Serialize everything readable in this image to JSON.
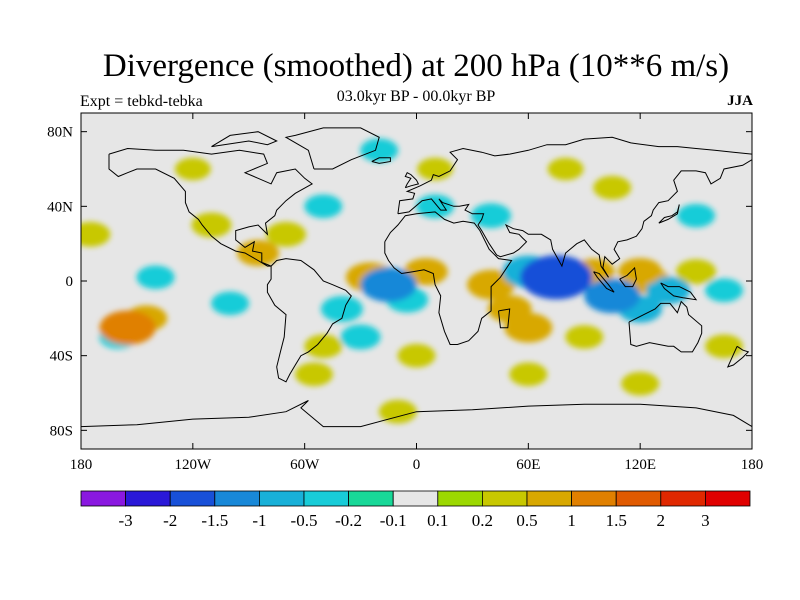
{
  "title": "Divergence (smoothed) at 200 hPa (10**6 m/s)",
  "subtitle": "03.0kyr BP - 00.0kyr BP",
  "left_label": "Expt = tebkd-tebka",
  "right_label": "JJA",
  "map": {
    "lon_range": [
      -180,
      180
    ],
    "lat_range": [
      -90,
      90
    ],
    "background_color": "#e6e6e6",
    "coastline_color": "#000000",
    "lat_ticks": [
      {
        "value": 80,
        "label": "80N"
      },
      {
        "value": 40,
        "label": "40N"
      },
      {
        "value": 0,
        "label": "0"
      },
      {
        "value": -40,
        "label": "40S"
      },
      {
        "value": -80,
        "label": "80S"
      }
    ],
    "lon_ticks": [
      {
        "value": -180,
        "label": "180"
      },
      {
        "value": -120,
        "label": "120W"
      },
      {
        "value": -60,
        "label": "60W"
      },
      {
        "value": 0,
        "label": "0"
      },
      {
        "value": 60,
        "label": "60E"
      },
      {
        "value": 120,
        "label": "120E"
      },
      {
        "value": 180,
        "label": "180"
      }
    ]
  },
  "colorbar": {
    "colors": [
      "#8a18e0",
      "#2a18d8",
      "#1850d8",
      "#1888d8",
      "#18b0d8",
      "#18ccd8",
      "#18d898",
      "#e6e6e6",
      "#9cd800",
      "#c8c800",
      "#d8a800",
      "#e08000",
      "#e05a00",
      "#e02800",
      "#e00000"
    ],
    "labels": [
      "-3",
      "-2",
      "-1.5",
      "-1",
      "-0.5",
      "-0.2",
      "-0.1",
      "0.1",
      "0.2",
      "0.5",
      "1",
      "1.5",
      "2",
      "3"
    ]
  },
  "chart_data": {
    "type": "heatmap",
    "title": "Divergence (smoothed) at 200 hPa (10**6 m/s)",
    "subtitle": "03.0kyr BP - 00.0kyr BP",
    "season": "JJA",
    "experiment": "tebkd-tebka",
    "xlim": [
      -180,
      180
    ],
    "ylim": [
      -90,
      90
    ],
    "levels": [
      -3,
      -2,
      -1.5,
      -1,
      -0.5,
      -0.2,
      -0.1,
      0.1,
      0.2,
      0.5,
      1,
      1.5,
      2,
      3
    ],
    "features": [
      {
        "lon": 75,
        "lat": 2,
        "value": -2.0
      },
      {
        "lon": 60,
        "lat": 5,
        "value": -1.0
      },
      {
        "lon": 105,
        "lat": -8,
        "value": -1.2
      },
      {
        "lon": 120,
        "lat": -15,
        "value": -0.6
      },
      {
        "lon": 135,
        "lat": -5,
        "value": -0.6
      },
      {
        "lon": -15,
        "lat": -2,
        "value": -1.2
      },
      {
        "lon": -5,
        "lat": -10,
        "value": -0.5
      },
      {
        "lon": -40,
        "lat": -15,
        "value": -0.5
      },
      {
        "lon": -30,
        "lat": -30,
        "value": -0.4
      },
      {
        "lon": -100,
        "lat": -12,
        "value": -0.3
      },
      {
        "lon": -140,
        "lat": 2,
        "value": -0.3
      },
      {
        "lon": -50,
        "lat": 40,
        "value": -0.3
      },
      {
        "lon": 40,
        "lat": 35,
        "value": -0.4
      },
      {
        "lon": 10,
        "lat": 40,
        "value": -0.3
      },
      {
        "lon": 150,
        "lat": 35,
        "value": -0.3
      },
      {
        "lon": 165,
        "lat": -5,
        "value": -0.3
      },
      {
        "lon": -160,
        "lat": -30,
        "value": -0.3
      },
      {
        "lon": -20,
        "lat": 70,
        "value": -0.3
      },
      {
        "lon": -155,
        "lat": -25,
        "value": 1.2
      },
      {
        "lon": -145,
        "lat": -20,
        "value": 0.5
      },
      {
        "lon": -25,
        "lat": 2,
        "value": 0.8
      },
      {
        "lon": 5,
        "lat": 5,
        "value": 0.6
      },
      {
        "lon": 40,
        "lat": -2,
        "value": 0.8
      },
      {
        "lon": 50,
        "lat": -15,
        "value": 0.6
      },
      {
        "lon": 60,
        "lat": -25,
        "value": 0.8
      },
      {
        "lon": 95,
        "lat": 5,
        "value": 0.5
      },
      {
        "lon": 120,
        "lat": 5,
        "value": 0.6
      },
      {
        "lon": 125,
        "lat": 0,
        "value": 0.5
      },
      {
        "lon": 150,
        "lat": 5,
        "value": 0.4
      },
      {
        "lon": -85,
        "lat": 15,
        "value": 0.5
      },
      {
        "lon": -70,
        "lat": 25,
        "value": 0.4
      },
      {
        "lon": -110,
        "lat": 30,
        "value": 0.4
      },
      {
        "lon": -175,
        "lat": 25,
        "value": 0.4
      },
      {
        "lon": -50,
        "lat": -35,
        "value": 0.3
      },
      {
        "lon": -55,
        "lat": -50,
        "value": 0.3
      },
      {
        "lon": 0,
        "lat": -40,
        "value": 0.3
      },
      {
        "lon": 60,
        "lat": -50,
        "value": 0.3
      },
      {
        "lon": 120,
        "lat": -55,
        "value": 0.3
      },
      {
        "lon": -10,
        "lat": -70,
        "value": 0.3
      },
      {
        "lon": 105,
        "lat": 50,
        "value": 0.3
      },
      {
        "lon": 10,
        "lat": 60,
        "value": 0.2
      },
      {
        "lon": -120,
        "lat": 60,
        "value": 0.2
      },
      {
        "lon": 80,
        "lat": 60,
        "value": 0.2
      },
      {
        "lon": 165,
        "lat": -35,
        "value": 0.3
      },
      {
        "lon": 90,
        "lat": -30,
        "value": 0.3
      }
    ]
  }
}
